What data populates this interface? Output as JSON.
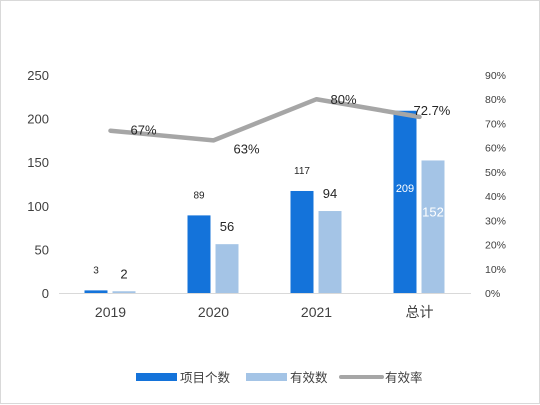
{
  "chart_data": {
    "type": "bar",
    "categories": [
      "2019",
      "2020",
      "2021",
      "总计"
    ],
    "series": [
      {
        "name": "项目个数",
        "type": "bar",
        "axis": "left",
        "color": "#1473da",
        "values": [
          3,
          89,
          117,
          209
        ]
      },
      {
        "name": "有效数",
        "type": "bar",
        "axis": "left",
        "color": "#a4c4e6",
        "values": [
          2,
          56,
          94,
          152
        ]
      },
      {
        "name": "有效率",
        "type": "line",
        "axis": "right",
        "color": "#a6a6a6",
        "values": [
          0.67,
          0.63,
          0.8,
          0.727
        ],
        "labels": [
          "67%",
          "63%",
          "80%",
          "72.7%"
        ]
      }
    ],
    "y_left": {
      "min": 0,
      "max": 250,
      "ticks": [
        "0",
        "50",
        "100",
        "150",
        "200",
        "250"
      ]
    },
    "y_right": {
      "min": 0,
      "max": 0.9,
      "ticks": [
        "0%",
        "10%",
        "20%",
        "30%",
        "40%",
        "50%",
        "60%",
        "70%",
        "80%",
        "90%"
      ]
    },
    "grid": false,
    "legend_position": "bottom"
  }
}
